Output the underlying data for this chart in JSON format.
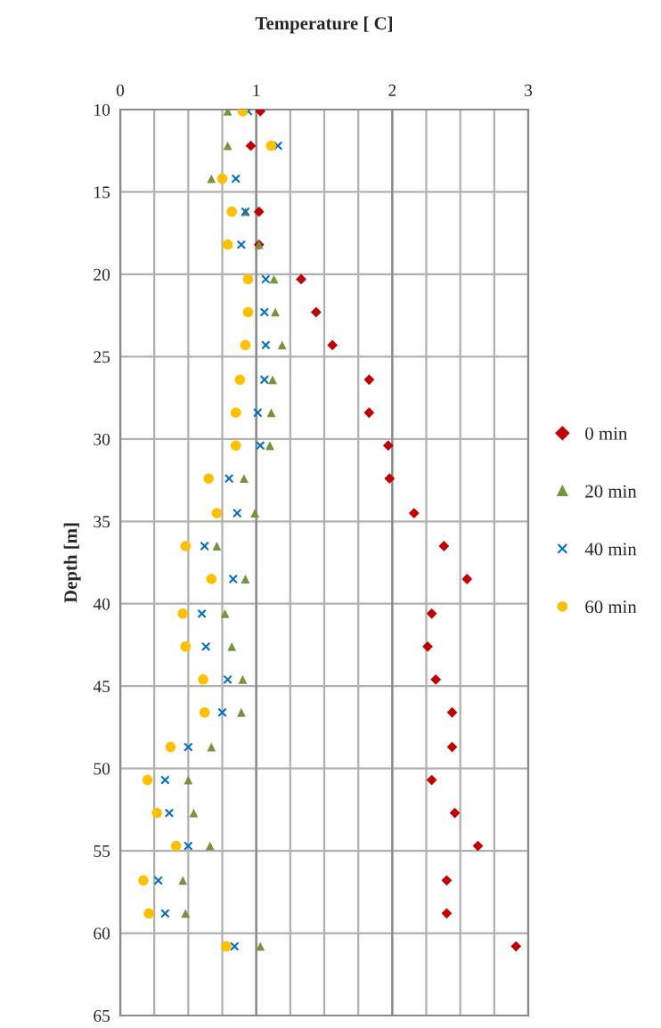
{
  "chart_data": {
    "type": "scatter",
    "title": "Temperature [ C]",
    "ylabel": "Depth [m]",
    "x": [
      10.1,
      12.2,
      14.2,
      16.2,
      18.2,
      20.3,
      22.3,
      24.3,
      26.4,
      28.4,
      30.4,
      32.4,
      34.5,
      36.5,
      38.5,
      40.6,
      42.6,
      44.6,
      46.6,
      48.7,
      50.7,
      52.7,
      54.7,
      56.8,
      58.8,
      60.8
    ],
    "series": [
      {
        "name": "0 min",
        "color": "#c00000",
        "marker": "diamond",
        "values": [
          1.03,
          0.96,
          null,
          1.02,
          1.02,
          1.33,
          1.44,
          1.56,
          1.83,
          1.83,
          1.97,
          1.98,
          2.16,
          2.38,
          2.55,
          2.29,
          2.26,
          2.32,
          2.44,
          2.44,
          2.29,
          2.46,
          2.63,
          2.4,
          2.4,
          2.91
        ]
      },
      {
        "name": "20 min",
        "color": "#77933c",
        "marker": "triangle",
        "values": [
          0.79,
          0.79,
          0.67,
          0.92,
          1.02,
          1.13,
          1.14,
          1.19,
          1.12,
          1.11,
          1.1,
          0.91,
          0.99,
          0.71,
          0.92,
          0.77,
          0.82,
          0.9,
          0.89,
          0.67,
          0.5,
          0.54,
          0.66,
          0.46,
          0.48,
          1.03
        ]
      },
      {
        "name": "40 min",
        "color": "#0070c0",
        "marker": "cross",
        "values": [
          0.94,
          1.16,
          0.85,
          0.92,
          0.89,
          1.07,
          1.06,
          1.07,
          1.06,
          1.01,
          1.03,
          0.8,
          0.86,
          0.62,
          0.83,
          0.6,
          0.63,
          0.79,
          0.75,
          0.5,
          0.33,
          0.36,
          0.5,
          0.28,
          0.33,
          0.84
        ]
      },
      {
        "name": "60 min",
        "color": "#ffc000",
        "marker": "circle",
        "values": [
          0.9,
          1.11,
          0.75,
          0.82,
          0.79,
          0.94,
          0.94,
          0.92,
          0.88,
          0.85,
          0.85,
          0.65,
          0.71,
          0.48,
          0.67,
          0.46,
          0.48,
          0.61,
          0.62,
          0.37,
          0.2,
          0.27,
          0.41,
          0.17,
          0.21,
          0.78
        ]
      }
    ],
    "orientation": "horizontal",
    "xlim": [
      0,
      3
    ],
    "xticks": [
      0,
      {
        "value": 0.25,
        "label": null
      },
      {
        "value": 0.5,
        "label": null
      },
      {
        "value": 0.75,
        "label": null
      },
      1,
      {
        "value": 1.25,
        "label": null
      },
      {
        "value": 1.5,
        "label": null
      },
      {
        "value": 1.75,
        "label": null
      },
      2,
      {
        "value": 2.25,
        "label": null
      },
      {
        "value": 2.5,
        "label": null
      },
      {
        "value": 2.75,
        "label": null
      },
      3
    ],
    "ylim": [
      65,
      10
    ],
    "yticks": [
      10,
      15,
      20,
      25,
      30,
      35,
      40,
      45,
      50,
      55,
      60,
      65
    ],
    "grid": true,
    "legend": "right"
  }
}
